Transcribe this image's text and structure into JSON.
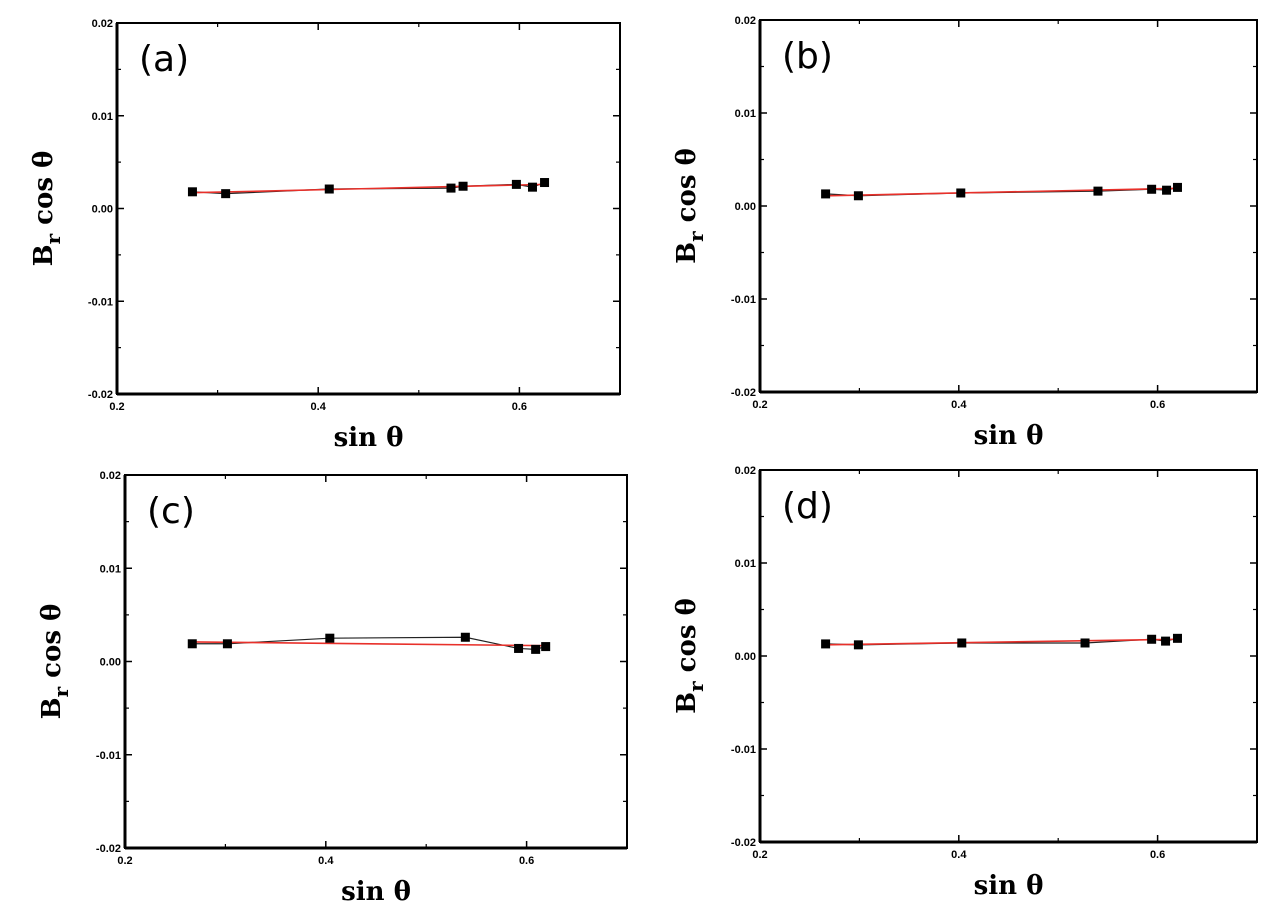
{
  "chart_data": [
    {
      "type": "scatter",
      "panel_label": "(a)",
      "xlabel": "sin θ",
      "ylabel": "B_r cos θ",
      "ylabel_main": "B",
      "ylabel_sub": "r",
      "ylabel_rest": " cos θ",
      "xlim": [
        0.2,
        0.7
      ],
      "ylim": [
        -0.02,
        0.02
      ],
      "xticks": [
        "0.2",
        "0.4",
        "0.6"
      ],
      "yticks": [
        "-0.02",
        "-0.01",
        "0.00",
        "0.01",
        "0.02"
      ],
      "x": [
        0.275,
        0.308,
        0.411,
        0.532,
        0.544,
        0.597,
        0.613,
        0.625
      ],
      "y": [
        0.0018,
        0.0016,
        0.0021,
        0.0022,
        0.0024,
        0.0026,
        0.0023,
        0.0028
      ],
      "fit": {
        "x": [
          0.275,
          0.625
        ],
        "y": [
          0.0017,
          0.0026
        ]
      }
    },
    {
      "type": "scatter",
      "panel_label": "(b)",
      "xlabel": "sin θ",
      "ylabel": "B_r cos θ",
      "ylabel_main": "B",
      "ylabel_sub": "r",
      "ylabel_rest": " cos θ",
      "xlim": [
        0.2,
        0.7
      ],
      "ylim": [
        -0.02,
        0.02
      ],
      "xticks": [
        "0.2",
        "0.4",
        "0.6"
      ],
      "yticks": [
        "-0.02",
        "-0.01",
        "0.00",
        "0.01",
        "0.02"
      ],
      "x": [
        0.266,
        0.299,
        0.402,
        0.54,
        0.594,
        0.609,
        0.62
      ],
      "y": [
        0.0013,
        0.0011,
        0.0014,
        0.0016,
        0.0018,
        0.0017,
        0.002
      ],
      "fit": {
        "x": [
          0.266,
          0.62
        ],
        "y": [
          0.0011,
          0.0019
        ]
      }
    },
    {
      "type": "scatter",
      "panel_label": "(c)",
      "xlabel": "sin θ",
      "ylabel": "B_r cos θ",
      "ylabel_main": "B",
      "ylabel_sub": "r",
      "ylabel_rest": " cos θ",
      "xlim": [
        0.2,
        0.7
      ],
      "ylim": [
        -0.02,
        0.02
      ],
      "xticks": [
        "0.2",
        "0.4",
        "0.6"
      ],
      "yticks": [
        "-0.02",
        "-0.01",
        "0.00",
        "0.01",
        "0.02"
      ],
      "x": [
        0.267,
        0.302,
        0.404,
        0.539,
        0.592,
        0.609,
        0.619
      ],
      "y": [
        0.0019,
        0.0019,
        0.0025,
        0.0026,
        0.0014,
        0.0013,
        0.0016
      ],
      "fit": {
        "x": [
          0.267,
          0.619
        ],
        "y": [
          0.0021,
          0.0017
        ]
      }
    },
    {
      "type": "scatter",
      "panel_label": "(d)",
      "xlabel": "sin θ",
      "ylabel": "B_r cos θ",
      "ylabel_main": "B",
      "ylabel_sub": "r",
      "ylabel_rest": " cos θ",
      "xlim": [
        0.2,
        0.7
      ],
      "ylim": [
        -0.02,
        0.02
      ],
      "xticks": [
        "0.2",
        "0.4",
        "0.6"
      ],
      "yticks": [
        "-0.02",
        "-0.01",
        "0.00",
        "0.01",
        "0.02"
      ],
      "x": [
        0.266,
        0.299,
        0.403,
        0.527,
        0.594,
        0.608,
        0.62
      ],
      "y": [
        0.0013,
        0.0012,
        0.0014,
        0.0014,
        0.0018,
        0.0016,
        0.0019
      ],
      "fit": {
        "x": [
          0.266,
          0.62
        ],
        "y": [
          0.0012,
          0.0018
        ]
      }
    }
  ],
  "colors": {
    "marker": "#000000",
    "fit_line": "#e8302a",
    "axes": "#000000"
  }
}
